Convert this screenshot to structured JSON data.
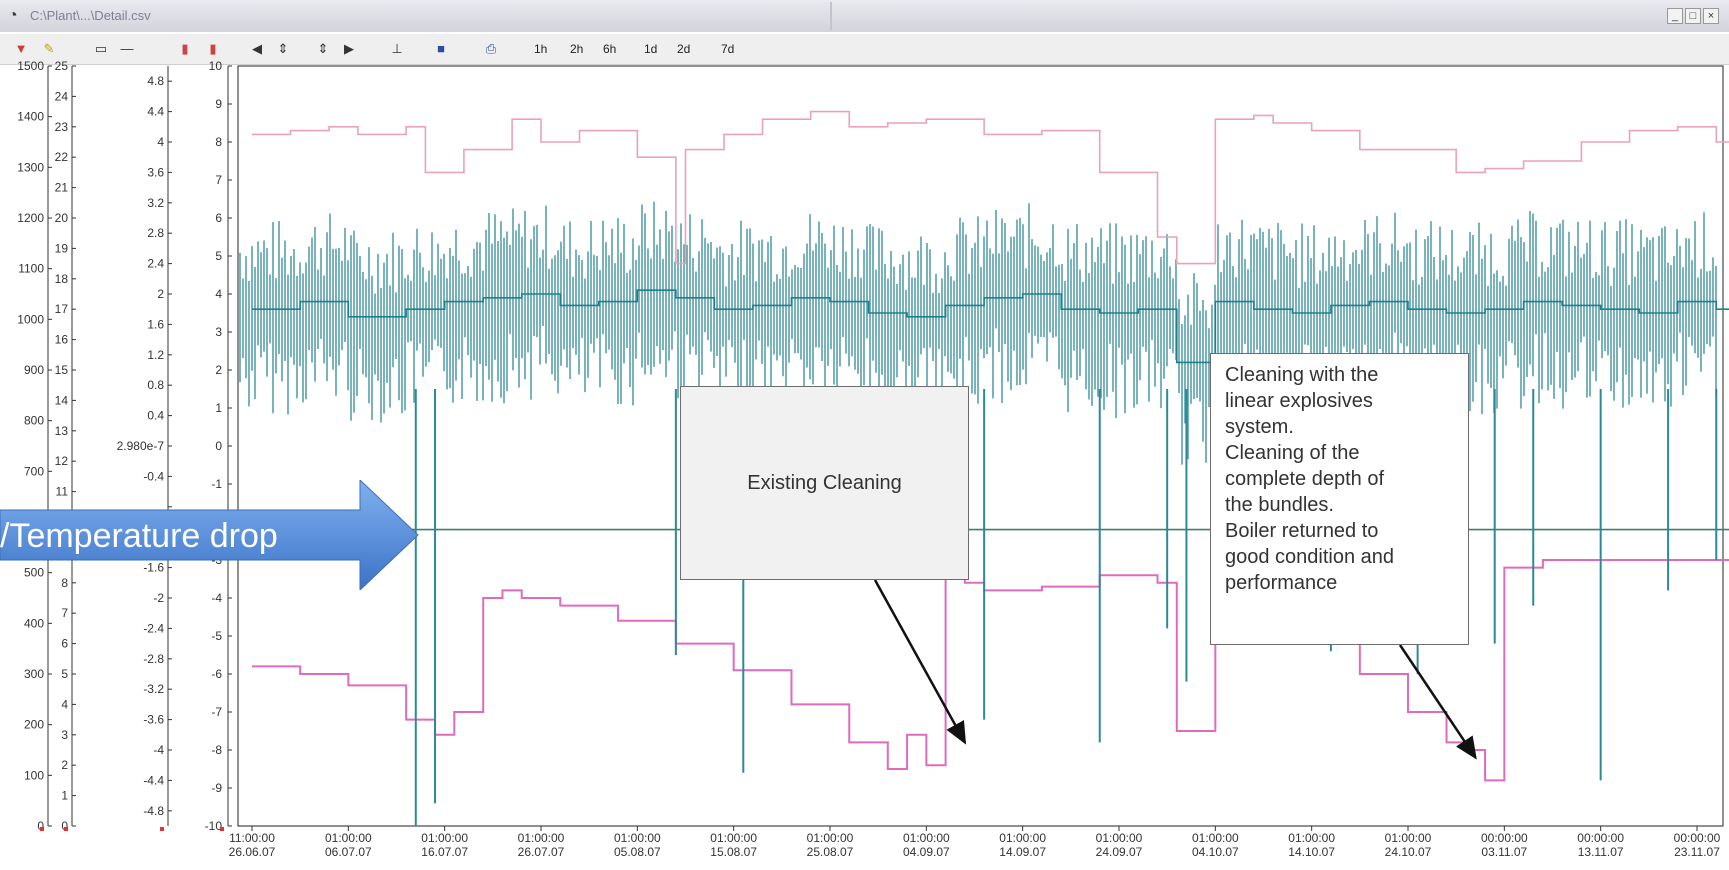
{
  "window": {
    "title": "C:\\Plant\\...\\Detail.csv",
    "controls": [
      "_",
      "□",
      "×"
    ]
  },
  "toolbar": {
    "icons": [
      "alarm-icon",
      "edit-icon",
      "window-icon",
      "minus-icon",
      "marker-a-icon",
      "marker-b-icon",
      "step-back-icon",
      "scroll-updown-icon",
      "zoom-updown-icon",
      "step-forward-icon",
      "ruler-icon",
      "save-icon",
      "print-icon"
    ],
    "time_ranges": [
      "1h",
      "2h",
      "6h",
      "1d",
      "2d",
      "7d"
    ]
  },
  "chart_data": {
    "type": "line",
    "axes": {
      "y1": {
        "ticks": [
          0,
          100,
          200,
          300,
          400,
          500,
          600,
          700,
          800,
          900,
          1000,
          1100,
          1200,
          1300,
          1400,
          1500
        ],
        "labels": [
          "0",
          "100",
          "200",
          "300",
          "400",
          "500",
          "",
          "700",
          "800",
          "900",
          "1000",
          "1100",
          "1200",
          "1300",
          "1400",
          "1500"
        ],
        "ylim": [
          0,
          1500
        ]
      },
      "y2": {
        "ticks": [
          0,
          1,
          2,
          3,
          4,
          5,
          6,
          7,
          8,
          9,
          10,
          11,
          12,
          13,
          14,
          15,
          16,
          17,
          18,
          19,
          20,
          21,
          22,
          23,
          24,
          25
        ],
        "labels": [
          "0",
          "1",
          "2",
          "3",
          "4",
          "5",
          "6",
          "7",
          "8",
          "",
          "",
          "11",
          "12",
          "13",
          "14",
          "15",
          "16",
          "17",
          "18",
          "19",
          "20",
          "21",
          "22",
          "23",
          "24",
          "25"
        ],
        "ylim": [
          0,
          25
        ]
      },
      "y3": {
        "ticks": [
          -4.8,
          -4.4,
          -4,
          -3.6,
          -3.2,
          -2.8,
          -2.4,
          -2,
          -1.6,
          -1.2,
          -0.8,
          -0.4,
          0,
          0.4,
          0.8,
          1.2,
          1.6,
          2,
          2.4,
          2.8,
          3.2,
          3.6,
          4,
          4.4,
          4.8
        ],
        "labels": [
          "-4.8",
          "-4.4",
          "-4",
          "-3.6",
          "-3.2",
          "-2.8",
          "-2.4",
          "-2",
          "-1.6",
          "",
          "",
          "-0.4",
          "2.980e-7",
          "0.4",
          "0.8",
          "1.2",
          "1.6",
          "2",
          "2.4",
          "2.8",
          "3.2",
          "3.6",
          "4",
          "4.4",
          "4.8"
        ],
        "ylim": [
          -5,
          5
        ]
      },
      "y4": {
        "ticks": [
          -10,
          -9,
          -8,
          -7,
          -6,
          -5,
          -4,
          -3,
          -2,
          -1,
          0,
          1,
          2,
          3,
          4,
          5,
          6,
          7,
          8,
          9,
          10
        ],
        "labels": [
          "-10",
          "-9",
          "-8",
          "-7",
          "-6",
          "-5",
          "-4",
          "-3",
          "",
          "-1",
          "0",
          "1",
          "2",
          "3",
          "4",
          "5",
          "6",
          "7",
          "8",
          "9",
          "10"
        ],
        "ylim": [
          -10,
          10
        ]
      },
      "x": {
        "ticks": [
          {
            "time": "11:00:00",
            "date": "26.06.07"
          },
          {
            "time": "01:00:00",
            "date": "06.07.07"
          },
          {
            "time": "01:00:00",
            "date": "16.07.07"
          },
          {
            "time": "01:00:00",
            "date": "26.07.07"
          },
          {
            "time": "01:00:00",
            "date": "05.08.07"
          },
          {
            "time": "01:00:00",
            "date": "15.08.07"
          },
          {
            "time": "01:00:00",
            "date": "25.08.07"
          },
          {
            "time": "01:00:00",
            "date": "04.09.07"
          },
          {
            "time": "01:00:00",
            "date": "14.09.07"
          },
          {
            "time": "01:00:00",
            "date": "24.09.07"
          },
          {
            "time": "01:00:00",
            "date": "04.10.07"
          },
          {
            "time": "01:00:00",
            "date": "14.10.07"
          },
          {
            "time": "01:00:00",
            "date": "24.10.07"
          },
          {
            "time": "00:00:00",
            "date": "03.11.07"
          },
          {
            "time": "00:00:00",
            "date": "13.11.07"
          },
          {
            "time": "00:00:00",
            "date": "23.11.07"
          }
        ]
      }
    },
    "series": [
      {
        "color": "#e9a3b8",
        "axis": "y4",
        "x": [
          0,
          0.4,
          0.8,
          1.1,
          1.6,
          1.8,
          2.2,
          2.7,
          3.0,
          3.4,
          4.0,
          4.4,
          4.5,
          4.9,
          5.3,
          5.8,
          6.2,
          6.6,
          7.0,
          7.6,
          8.2,
          8.8,
          9.4,
          9.6,
          10.0,
          10.4,
          10.6,
          11.0,
          11.5,
          12.0,
          12.5,
          12.8,
          13.2,
          13.8,
          14.3,
          14.8,
          15.2,
          15.6
        ],
        "y": [
          8.2,
          8.3,
          8.4,
          8.2,
          8.4,
          7.2,
          7.8,
          8.6,
          8.0,
          8.3,
          7.6,
          4.8,
          7.8,
          8.2,
          8.6,
          8.8,
          8.4,
          8.5,
          8.6,
          8.2,
          8.3,
          7.2,
          5.5,
          4.8,
          8.6,
          8.7,
          8.5,
          8.3,
          7.8,
          7.8,
          7.2,
          7.3,
          7.5,
          8.0,
          8.3,
          8.4,
          8.0,
          7.8
        ]
      },
      {
        "color": "#e06bbd",
        "axis": "y4",
        "x": [
          0,
          0.5,
          1.0,
          1.6,
          1.9,
          2.1,
          2.4,
          2.6,
          2.8,
          3.2,
          3.8,
          4.4,
          5.0,
          5.6,
          6.2,
          6.6,
          6.8,
          7.0,
          7.2,
          7.4,
          7.6,
          8.2,
          8.8,
          9.4,
          9.6,
          10.0,
          10.4,
          10.6,
          11.0,
          11.5,
          12.0,
          12.4,
          12.6,
          12.8,
          13.0,
          13.4,
          14.0,
          14.6,
          15.2,
          15.6
        ],
        "y": [
          -5.8,
          -6.0,
          -6.3,
          -7.2,
          -7.6,
          -7.0,
          -4.0,
          -3.8,
          -4.0,
          -4.2,
          -4.6,
          -5.2,
          -5.9,
          -6.8,
          -7.8,
          -8.5,
          -7.6,
          -8.4,
          -3.5,
          -3.6,
          -3.8,
          -3.7,
          -3.4,
          -3.6,
          -7.5,
          -3.9,
          -4.2,
          -4.3,
          -4.9,
          -6.0,
          -7.0,
          -7.8,
          -8.0,
          -8.8,
          -3.2,
          -3.0,
          -3.0,
          -3.0,
          -3.0,
          -3.1
        ]
      },
      {
        "color": "#1f7f8f",
        "axis": "y4",
        "x": [
          0,
          0.5,
          1.0,
          1.6,
          2.0,
          2.4,
          2.8,
          3.2,
          3.6,
          4.0,
          4.4,
          4.8,
          5.2,
          5.6,
          6.0,
          6.4,
          6.8,
          7.2,
          7.6,
          8.0,
          8.4,
          8.8,
          9.2,
          9.6,
          10.0,
          10.4,
          10.8,
          11.2,
          11.6,
          12.0,
          12.4,
          12.8,
          13.2,
          13.6,
          14.0,
          14.4,
          14.8,
          15.2,
          15.6
        ],
        "y": [
          3.6,
          3.8,
          3.4,
          3.6,
          3.8,
          3.9,
          4.0,
          3.7,
          3.8,
          4.1,
          3.9,
          3.6,
          3.7,
          3.9,
          3.8,
          3.5,
          3.4,
          3.7,
          3.9,
          4.0,
          3.6,
          3.5,
          3.6,
          2.2,
          3.8,
          3.6,
          3.5,
          3.7,
          3.8,
          3.6,
          3.5,
          3.6,
          3.8,
          3.7,
          3.6,
          3.5,
          3.8,
          3.6,
          3.7
        ]
      },
      {
        "color": "#3e7f6d",
        "axis": "y4",
        "x": [
          0,
          15.6
        ],
        "y": [
          -2.2,
          -2.2
        ]
      }
    ],
    "spikes": {
      "color": "#2a8a98",
      "axis": "y4",
      "x": [
        1.7,
        1.9,
        4.4,
        5.1,
        6.3,
        7.6,
        8.8,
        9.5,
        9.7,
        10.4,
        11.2,
        12.1,
        12.9,
        13.3,
        14.0,
        14.7,
        15.2
      ],
      "y": [
        -10,
        -9.4,
        -5.5,
        -8.6,
        -2.8,
        -7.2,
        -7.8,
        -4.8,
        -6.2,
        -4.0,
        -5.4,
        -6.0,
        -5.2,
        -4.2,
        -8.8,
        -3.8,
        -3.0
      ]
    },
    "annotations": [
      {
        "text": "Existing Cleaning",
        "arrow_to": {
          "x": 7.4,
          "y": -7.8,
          "axis": "y4"
        }
      },
      {
        "lines": [
          "Cleaning with the",
          "linear explosives",
          "system.",
          "Cleaning of the",
          "complete depth of",
          "the bundles.",
          "Boiler returned to",
          "good condition and",
          "performance"
        ],
        "arrow_to": {
          "x": 12.7,
          "y": -8.2,
          "axis": "y4"
        }
      }
    ],
    "banner": {
      "text": "/Temperature drop",
      "color": "#5b8fd9"
    },
    "grid": false
  }
}
